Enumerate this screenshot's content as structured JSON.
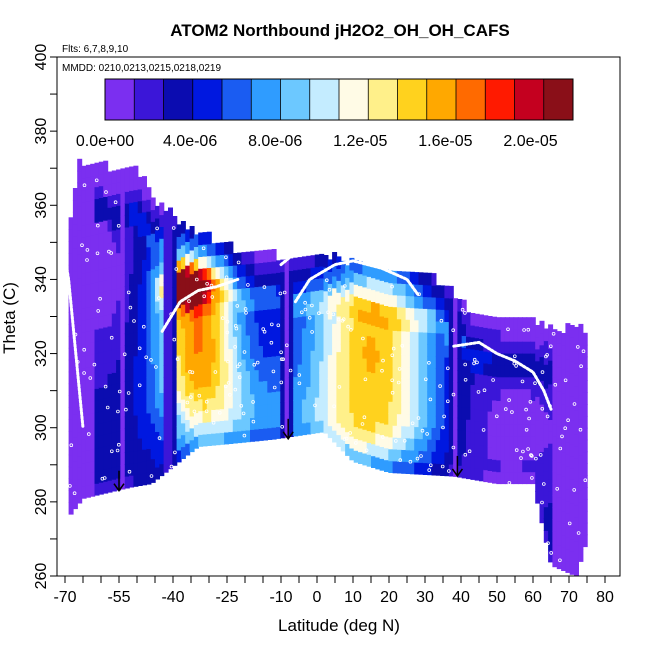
{
  "chart_data": {
    "type": "heatmap",
    "title": "ATOM2 Northbound jH2O2_OH_OH_CAFS",
    "subtitle_flights": "Flts: 6,7,8,9,10",
    "subtitle_dates": "MMDD: 0210,0213,0215,0218,0219",
    "xlabel": "Latitude (deg N)",
    "ylabel": "Theta (C)",
    "xlim": [
      -70,
      80
    ],
    "ylim": [
      260,
      400
    ],
    "x_ticks": [
      -70,
      -55,
      -40,
      -25,
      -10,
      0,
      10,
      20,
      30,
      40,
      50,
      60,
      70,
      80
    ],
    "x_tick_labels": [
      "-70",
      "-55",
      "-40",
      "-25",
      "-10",
      "0",
      "10",
      "20",
      "30",
      "40",
      "50",
      "60",
      "70",
      "80"
    ],
    "y_ticks": [
      260,
      280,
      300,
      320,
      340,
      360,
      380,
      400
    ],
    "y_tick_labels": [
      "260",
      "280",
      "300",
      "320",
      "340",
      "360",
      "380",
      "400"
    ],
    "colorbar": {
      "range": [
        0,
        2.2e-05
      ],
      "tick_values": [
        0,
        4e-06,
        8e-06,
        1.2e-05,
        1.6e-05,
        2e-05
      ],
      "tick_labels": [
        "0.0e+00",
        "4.0e-06",
        "8.0e-06",
        "1.2e-05",
        "1.6e-05",
        "2.0e-05"
      ],
      "colors": [
        "#7b2ff0",
        "#3b16d8",
        "#0b0cb0",
        "#0018e0",
        "#1a5cf2",
        "#2f9cff",
        "#6cc8ff",
        "#c4ecff",
        "#fffbe6",
        "#fff08a",
        "#ffd21e",
        "#ffa800",
        "#ff6a00",
        "#ff1a00",
        "#c4001f",
        "#8a0f18"
      ]
    },
    "cell_width_deg": 1.2,
    "cell_height_theta": 3.2,
    "profile_columns_lat": [
      -66,
      -54,
      -41,
      -8.5,
      38.5
    ],
    "profile_col_value": 1.2e-06,
    "domain_top": [
      [
        -69,
        350
      ],
      [
        -66,
        370
      ],
      [
        -50,
        368
      ],
      [
        -45,
        360
      ],
      [
        -35,
        352
      ],
      [
        -20,
        346
      ],
      [
        -10,
        345
      ],
      [
        0,
        345
      ],
      [
        20,
        342
      ],
      [
        35,
        338
      ],
      [
        43,
        330
      ],
      [
        55,
        328
      ],
      [
        70,
        325
      ],
      [
        75,
        325
      ]
    ],
    "domain_bottom": [
      [
        -69,
        276
      ],
      [
        -65,
        281
      ],
      [
        -52,
        284
      ],
      [
        -46,
        285
      ],
      [
        -33,
        295
      ],
      [
        -22,
        296
      ],
      [
        -12,
        297
      ],
      [
        2,
        299
      ],
      [
        10,
        291
      ],
      [
        20,
        288
      ],
      [
        38,
        287
      ],
      [
        50,
        285
      ],
      [
        60,
        285
      ],
      [
        65,
        263
      ],
      [
        72,
        260
      ],
      [
        75,
        270
      ]
    ],
    "blobs": [
      {
        "lat": -33,
        "theta": 326,
        "s_lat": 8,
        "s_theta": 18,
        "value": 1.3e-05
      },
      {
        "lat": -36,
        "theta": 338,
        "s_lat": 5,
        "s_theta": 4,
        "value": 1.1e-05
      },
      {
        "lat": -38,
        "theta": 338,
        "s_lat": 2.5,
        "s_theta": 2.2,
        "value": 1.2e-05
      },
      {
        "lat": 15,
        "theta": 322,
        "s_lat": 12,
        "s_theta": 20,
        "value": 1.2e-05
      },
      {
        "lat": -25,
        "theta": 305,
        "s_lat": 12,
        "s_theta": 10,
        "value": 4e-06
      },
      {
        "lat": 15,
        "theta": 300,
        "s_lat": 18,
        "s_theta": 8,
        "value": 4e-06
      },
      {
        "lat": 52,
        "theta": 300,
        "s_lat": 14,
        "s_theta": 12,
        "value": -3e-06
      },
      {
        "lat": -60,
        "theta": 340,
        "s_lat": 6,
        "s_theta": 15,
        "value": -3e-06
      }
    ],
    "flight_arrows": [
      {
        "lat": -55,
        "theta": 283
      },
      {
        "lat": -8,
        "theta": 297
      },
      {
        "lat": 39,
        "theta": 287
      }
    ],
    "flight_tracks": [
      [
        [
          -43,
          326
        ],
        [
          -38,
          334
        ],
        [
          -33,
          337
        ],
        [
          -28,
          338
        ],
        [
          -22,
          340
        ]
      ],
      [
        [
          -10,
          344
        ],
        [
          -5,
          348
        ]
      ],
      [
        [
          -6,
          334
        ],
        [
          -2,
          340
        ],
        [
          5,
          344
        ],
        [
          10,
          345
        ],
        [
          18,
          343
        ],
        [
          25,
          340
        ],
        [
          28,
          336
        ]
      ],
      [
        [
          38,
          322
        ],
        [
          45,
          323
        ],
        [
          50,
          320
        ],
        [
          55,
          318
        ],
        [
          60,
          315
        ],
        [
          63,
          310
        ],
        [
          65,
          305
        ]
      ],
      [
        [
          -70,
          346
        ],
        [
          -69,
          340
        ],
        [
          -68,
          330
        ],
        [
          -67,
          320
        ],
        [
          -66,
          310
        ],
        [
          -65,
          300
        ]
      ]
    ]
  }
}
